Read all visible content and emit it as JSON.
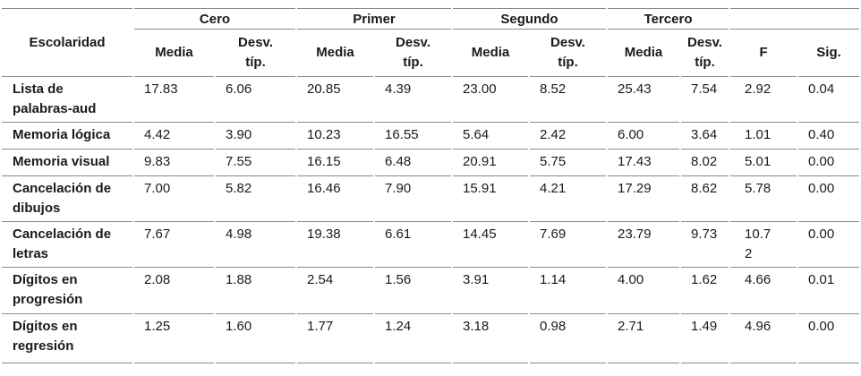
{
  "table": {
    "row_header_label": "Escolaridad",
    "groups": [
      {
        "label": "Cero"
      },
      {
        "label": "Primer"
      },
      {
        "label": "Segundo"
      },
      {
        "label": "Tercero"
      }
    ],
    "sub_headers": {
      "media": "Media",
      "desv": "Desv. típ."
    },
    "stat_cols": [
      "F",
      "Sig."
    ],
    "rows": [
      {
        "label": "Lista de palabras-aud",
        "values": [
          "17.83",
          "6.06",
          "20.85",
          "4.39",
          "23.00",
          "8.52",
          "25.43",
          "7.54",
          "2.92",
          "0.04"
        ]
      },
      {
        "label": "Memoria lógica",
        "values": [
          "4.42",
          "3.90",
          "10.23",
          "16.55",
          "5.64",
          "2.42",
          "6.00",
          "3.64",
          "1.01",
          "0.40"
        ]
      },
      {
        "label": "Memoria visual",
        "values": [
          "9.83",
          "7.55",
          "16.15",
          "6.48",
          "20.91",
          "5.75",
          "17.43",
          "8.02",
          "5.01",
          "0.00"
        ]
      },
      {
        "label": "Cancelación de dibujos",
        "values": [
          "7.00",
          "5.82",
          "16.46",
          "7.90",
          "15.91",
          "4.21",
          "17.29",
          "8.62",
          "5.78",
          "0.00"
        ]
      },
      {
        "label": "Cancelación de letras",
        "values": [
          "7.67",
          "4.98",
          "19.38",
          "6.61",
          "14.45",
          "7.69",
          "23.79",
          "9.73",
          "10.72",
          "0.00"
        ]
      },
      {
        "label": "Dígitos en progresión",
        "values": [
          "2.08",
          "1.88",
          "2.54",
          "1.56",
          "3.91",
          "1.14",
          "4.00",
          "1.62",
          "4.66",
          "0.01"
        ]
      },
      {
        "label": "Dígitos en regresión",
        "values": [
          "1.25",
          "1.60",
          "1.77",
          "1.24",
          "3.18",
          "0.98",
          "2.71",
          "1.49",
          "4.96",
          "0.00"
        ]
      }
    ]
  },
  "colors": {
    "rule": "#8a8a8a",
    "text": "#1a1a1a",
    "background": "#ffffff"
  }
}
